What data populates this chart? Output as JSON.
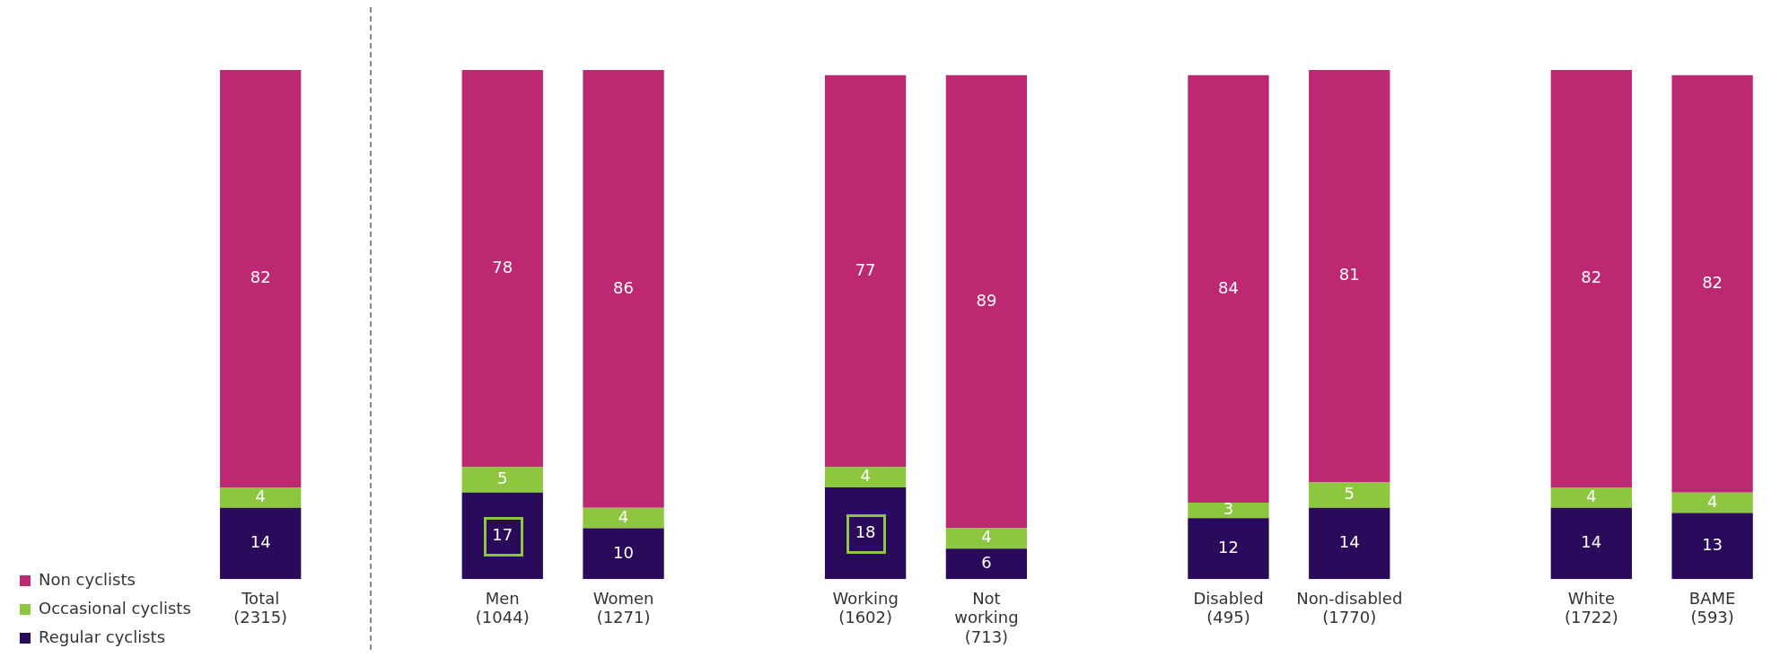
{
  "chart_data": {
    "type": "bar",
    "stacked": true,
    "data_labels": true,
    "legend": "bottom left",
    "grid": false,
    "categories": [
      "Total (2315)",
      null,
      "Men (1044)",
      "Women (1271)",
      null,
      "Working (1602)",
      "Not working (713)",
      null,
      "Disabled (495)",
      "Non-disabled (1770)",
      null,
      "White (1722)",
      "BAME (593)"
    ],
    "series": [
      {
        "name": "Regular cyclists",
        "color": "#2a0a5a",
        "values": [
          14,
          null,
          17,
          10,
          null,
          18,
          6,
          null,
          12,
          14,
          null,
          14,
          13
        ]
      },
      {
        "name": "Occasional cyclists",
        "color": "#8dc63f",
        "values": [
          4,
          null,
          5,
          4,
          null,
          4,
          4,
          null,
          3,
          5,
          null,
          4,
          4
        ]
      },
      {
        "name": "Non cyclists",
        "color": "#bc2872",
        "values": [
          82,
          null,
          78,
          86,
          null,
          77,
          89,
          null,
          84,
          81,
          null,
          82,
          82
        ]
      }
    ]
  }
}
